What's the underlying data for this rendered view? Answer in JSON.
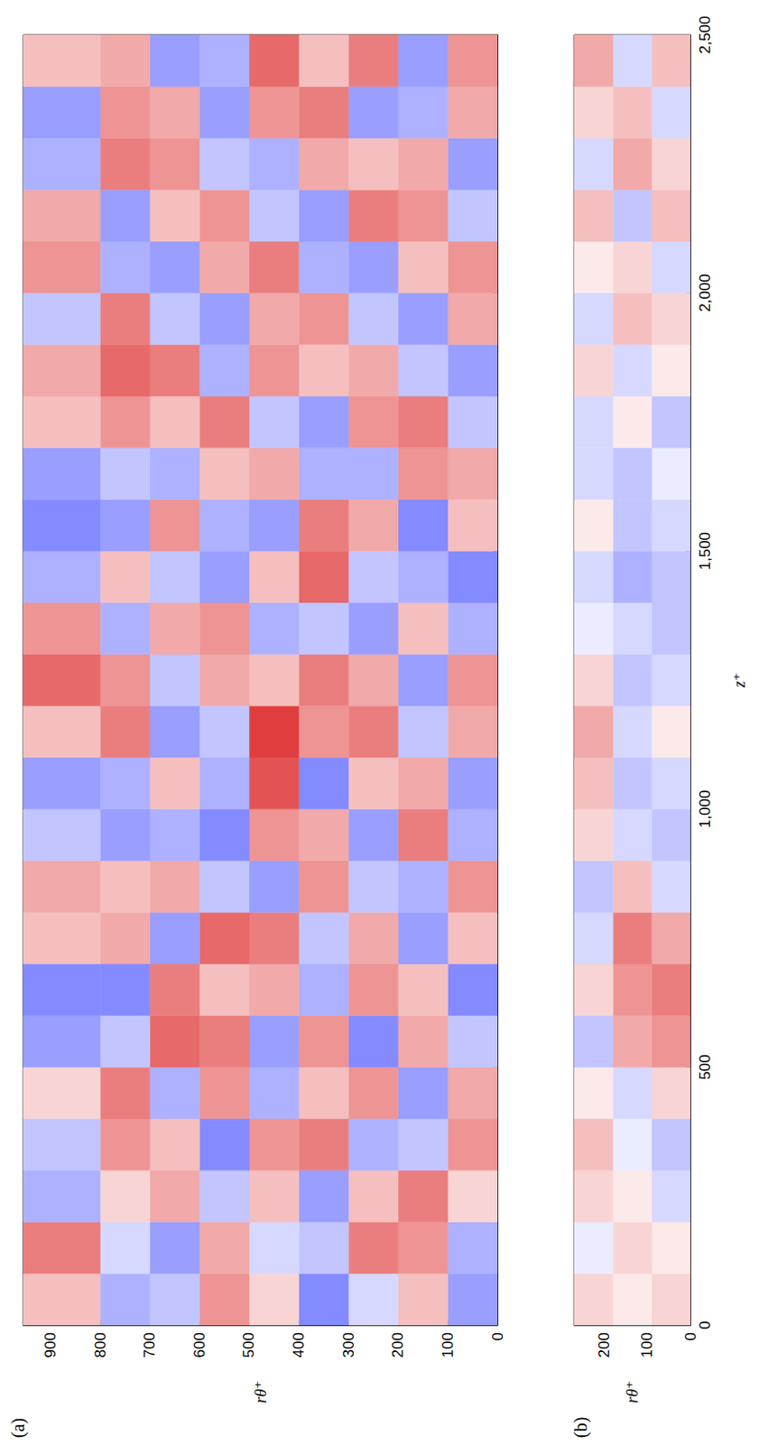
{
  "chart_data": [
    {
      "type": "heatmap",
      "title": "(a)",
      "ylabel": "rθ⁺",
      "xlim": [
        0,
        2500
      ],
      "xticks": [
        0,
        500,
        1000,
        1500,
        2000,
        2500
      ],
      "ylim": [
        0,
        955
      ],
      "yticks": [
        0,
        100,
        200,
        300,
        400,
        500,
        600,
        700,
        800,
        900
      ],
      "tick_labels": "y",
      "clim": [
        -1,
        1
      ],
      "cells": {
        "x_edges": [
          0,
          100,
          200,
          300,
          400,
          500,
          600,
          700,
          800,
          900,
          1000,
          1100,
          1200,
          1300,
          1400,
          1500,
          1600,
          1700,
          1800,
          1900,
          2000,
          2100,
          2200,
          2300,
          2400,
          2500
        ],
        "y_edges": [
          0,
          100,
          200,
          300,
          400,
          500,
          600,
          700,
          800,
          955
        ],
        "values": [
          [
            -0.5,
            0.3,
            -0.2,
            -0.6,
            0.2,
            0.5,
            -0.3,
            -0.4,
            0.3
          ],
          [
            -0.4,
            0.5,
            0.6,
            -0.3,
            -0.2,
            0.4,
            -0.5,
            -0.2,
            0.6
          ],
          [
            0.2,
            0.6,
            0.3,
            -0.5,
            0.3,
            -0.3,
            0.4,
            0.2,
            -0.4
          ],
          [
            0.5,
            -0.3,
            -0.4,
            0.6,
            0.5,
            -0.6,
            0.3,
            0.5,
            -0.3
          ],
          [
            0.4,
            -0.5,
            0.5,
            0.3,
            -0.4,
            0.5,
            -0.4,
            0.6,
            0.2
          ],
          [
            -0.3,
            0.4,
            -0.6,
            0.5,
            -0.5,
            0.6,
            0.7,
            -0.3,
            -0.5
          ],
          [
            -0.6,
            0.3,
            0.5,
            -0.4,
            0.4,
            0.3,
            0.6,
            -0.6,
            -0.6
          ],
          [
            0.3,
            -0.5,
            0.4,
            -0.3,
            0.6,
            0.7,
            -0.5,
            0.4,
            0.3
          ],
          [
            0.5,
            -0.4,
            -0.3,
            0.5,
            -0.5,
            -0.3,
            0.4,
            0.3,
            0.4
          ],
          [
            -0.4,
            0.6,
            -0.5,
            0.4,
            0.5,
            -0.6,
            -0.4,
            -0.5,
            -0.3
          ],
          [
            -0.5,
            0.4,
            0.3,
            -0.6,
            0.8,
            -0.4,
            0.3,
            -0.4,
            -0.5
          ],
          [
            0.4,
            -0.3,
            0.6,
            0.5,
            0.9,
            -0.3,
            -0.5,
            0.6,
            0.3
          ],
          [
            0.5,
            -0.5,
            0.4,
            0.6,
            0.3,
            0.4,
            -0.3,
            0.5,
            0.7
          ],
          [
            -0.4,
            0.3,
            -0.5,
            -0.3,
            -0.4,
            0.5,
            0.4,
            -0.4,
            0.5
          ],
          [
            -0.6,
            -0.4,
            -0.3,
            0.7,
            0.3,
            -0.5,
            -0.3,
            0.3,
            -0.4
          ],
          [
            0.3,
            -0.6,
            0.4,
            0.6,
            -0.5,
            -0.4,
            0.5,
            -0.5,
            -0.6
          ],
          [
            0.4,
            0.5,
            -0.4,
            -0.4,
            0.4,
            0.3,
            -0.4,
            -0.3,
            -0.5
          ],
          [
            -0.3,
            0.6,
            0.5,
            -0.5,
            -0.3,
            0.6,
            0.3,
            0.5,
            0.3
          ],
          [
            -0.5,
            -0.3,
            0.4,
            0.3,
            0.5,
            -0.4,
            0.6,
            0.7,
            0.4
          ],
          [
            0.4,
            -0.5,
            -0.3,
            0.5,
            0.4,
            -0.5,
            -0.3,
            0.6,
            -0.3
          ],
          [
            0.5,
            0.3,
            -0.5,
            -0.4,
            0.6,
            0.4,
            -0.5,
            -0.4,
            0.5
          ],
          [
            -0.3,
            0.5,
            0.6,
            -0.5,
            -0.3,
            0.5,
            0.3,
            -0.5,
            0.4
          ],
          [
            -0.5,
            0.4,
            0.3,
            0.4,
            -0.4,
            -0.3,
            0.5,
            0.6,
            -0.4
          ],
          [
            0.4,
            -0.4,
            -0.5,
            0.6,
            0.5,
            -0.5,
            0.4,
            0.5,
            -0.5
          ],
          [
            0.5,
            -0.5,
            0.6,
            0.3,
            0.7,
            -0.4,
            -0.5,
            0.4,
            0.3
          ]
        ]
      }
    },
    {
      "type": "heatmap",
      "title": "(b)",
      "xlabel": "z⁺",
      "ylabel": "rθ⁺",
      "xlim": [
        0,
        2500
      ],
      "xticks": [
        0,
        500,
        1000,
        1500,
        2000,
        2500
      ],
      "ylim": [
        0,
        270
      ],
      "yticks": [
        0,
        100,
        200
      ],
      "tick_labels": true,
      "clim": [
        -1,
        1
      ],
      "cells": {
        "x_edges": [
          0,
          100,
          200,
          300,
          400,
          500,
          600,
          700,
          800,
          900,
          1000,
          1100,
          1200,
          1300,
          1400,
          1500,
          1600,
          1700,
          1800,
          1900,
          2000,
          2100,
          2200,
          2300,
          2400,
          2500
        ],
        "y_edges": [
          0,
          90,
          180,
          270
        ],
        "values": [
          [
            0.2,
            0.1,
            0.2
          ],
          [
            0.1,
            0.2,
            -0.1
          ],
          [
            -0.2,
            0.1,
            0.2
          ],
          [
            -0.3,
            -0.1,
            0.3
          ],
          [
            0.2,
            -0.2,
            0.1
          ],
          [
            0.5,
            0.4,
            -0.3
          ],
          [
            0.6,
            0.5,
            0.2
          ],
          [
            0.4,
            0.6,
            -0.2
          ],
          [
            -0.2,
            0.3,
            -0.3
          ],
          [
            -0.3,
            -0.2,
            0.2
          ],
          [
            -0.2,
            -0.3,
            0.3
          ],
          [
            0.1,
            -0.2,
            0.4
          ],
          [
            -0.2,
            -0.3,
            0.2
          ],
          [
            -0.3,
            -0.2,
            -0.1
          ],
          [
            -0.3,
            -0.4,
            -0.2
          ],
          [
            -0.2,
            -0.3,
            0.1
          ],
          [
            -0.1,
            -0.3,
            -0.2
          ],
          [
            -0.3,
            0.1,
            -0.2
          ],
          [
            0.1,
            -0.2,
            0.2
          ],
          [
            0.2,
            0.3,
            -0.2
          ],
          [
            -0.2,
            0.2,
            0.1
          ],
          [
            0.3,
            -0.3,
            0.3
          ],
          [
            0.2,
            0.4,
            -0.2
          ],
          [
            -0.2,
            0.3,
            0.2
          ],
          [
            0.3,
            -0.2,
            0.4
          ]
        ]
      }
    }
  ]
}
